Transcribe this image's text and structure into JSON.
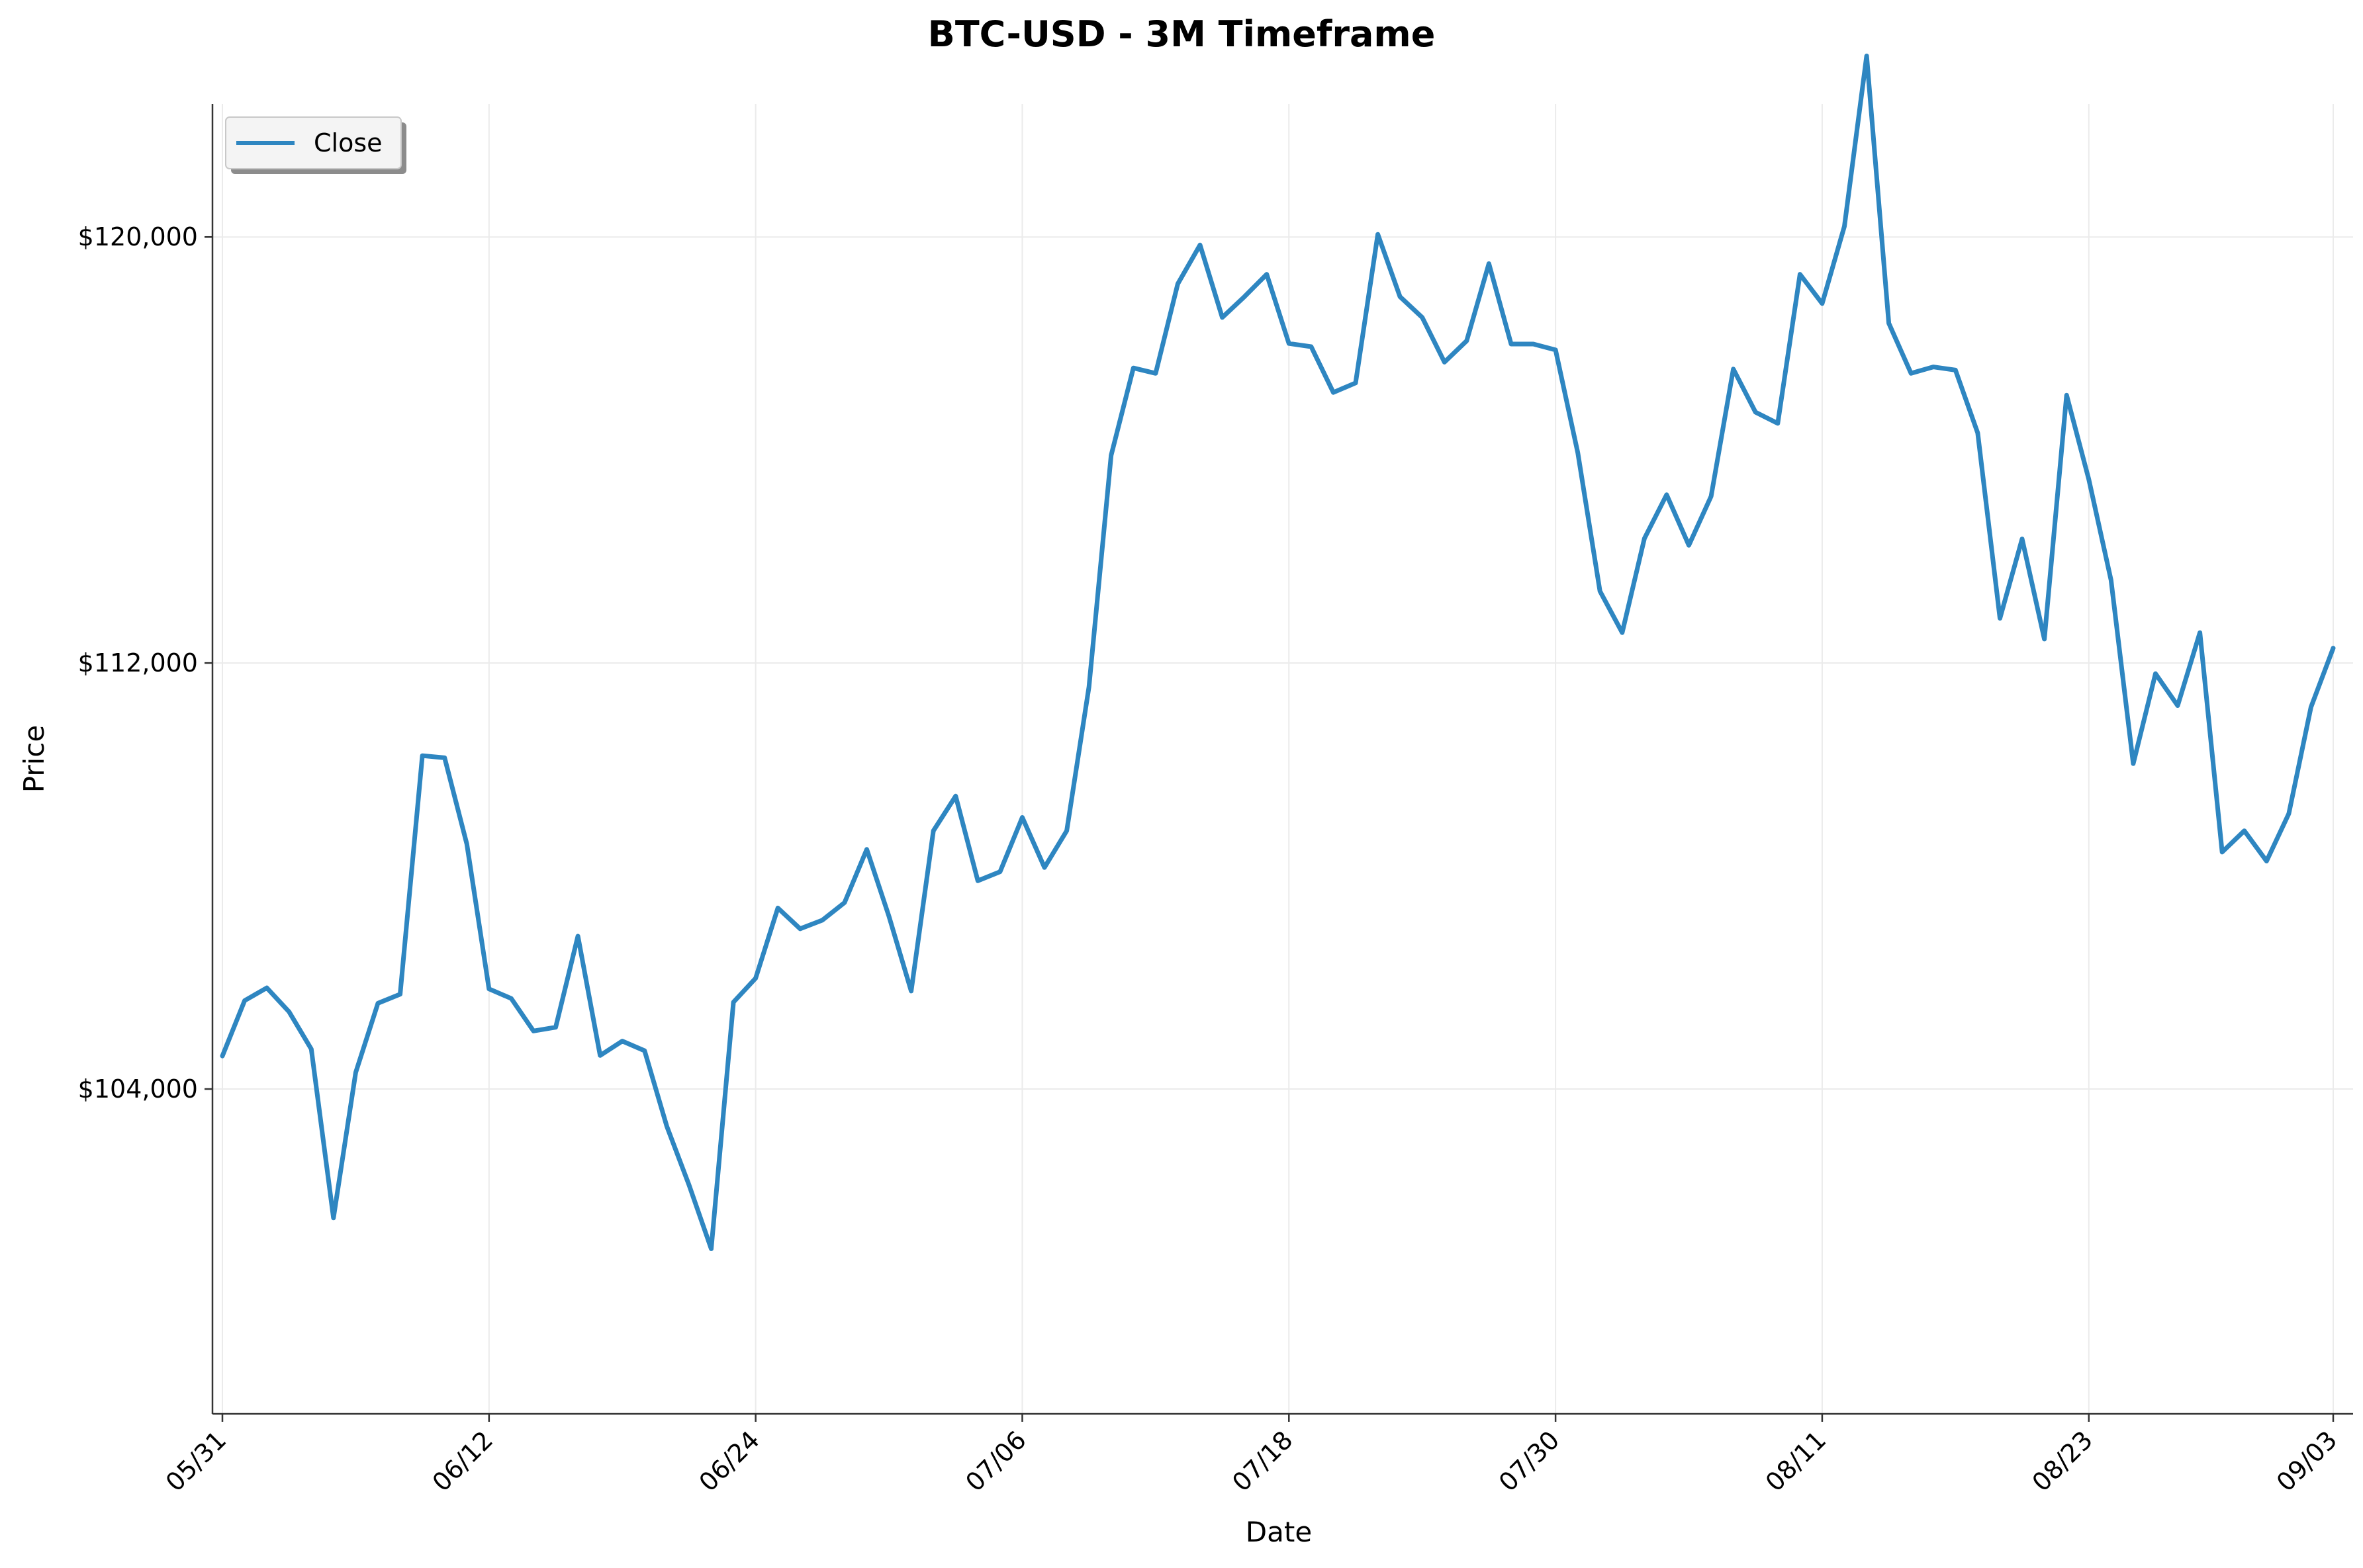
{
  "chart_data": {
    "type": "line",
    "title": "BTC-USD - 3M Timeframe",
    "xlabel": "Date",
    "ylabel": "Price",
    "grid": true,
    "legend_position": "top-left",
    "line_color": "#2e86c1",
    "x_start": "05/31",
    "x_end": "09/03",
    "xlim": [
      0,
      95
    ],
    "ylim": [
      97900,
      122500
    ],
    "x_ticks": [
      {
        "label": "05/31",
        "x": 0
      },
      {
        "label": "06/12",
        "x": 12
      },
      {
        "label": "06/24",
        "x": 24
      },
      {
        "label": "07/06",
        "x": 36
      },
      {
        "label": "07/18",
        "x": 48
      },
      {
        "label": "07/30",
        "x": 60
      },
      {
        "label": "08/11",
        "x": 72
      },
      {
        "label": "08/23",
        "x": 84
      },
      {
        "label": "09/03",
        "x": 95
      }
    ],
    "y_ticks": [
      {
        "label": "$104,000",
        "value": 104000
      },
      {
        "label": "$112,000",
        "value": 112000
      },
      {
        "label": "$120,000",
        "value": 120000
      }
    ],
    "series": [
      {
        "name": "Close",
        "values": [
          104620,
          105660,
          105900,
          105450,
          104750,
          101580,
          104310,
          105610,
          105780,
          110260,
          110220,
          108600,
          105880,
          105700,
          105090,
          105160,
          106870,
          104630,
          104900,
          104720,
          103300,
          102200,
          101000,
          105630,
          106080,
          107400,
          107010,
          107170,
          107500,
          108500,
          107240,
          105840,
          108850,
          109500,
          107910,
          108080,
          109100,
          108160,
          108850,
          111550,
          115900,
          117540,
          117440,
          119120,
          119850,
          118490,
          118880,
          119300,
          118000,
          117940,
          117080,
          117260,
          120050,
          118880,
          118490,
          117650,
          118050,
          119500,
          117990,
          117990,
          117880,
          115950,
          113350,
          112570,
          114340,
          115160,
          114210,
          115130,
          117520,
          116710,
          116500,
          119300,
          118750,
          120200,
          123400,
          118380,
          117440,
          117560,
          117500,
          116320,
          112840,
          114330,
          112450,
          117030,
          115450,
          113560,
          110110,
          111800,
          111200,
          112570,
          108450,
          108850,
          108280,
          109170,
          111170,
          112280
        ]
      }
    ]
  }
}
